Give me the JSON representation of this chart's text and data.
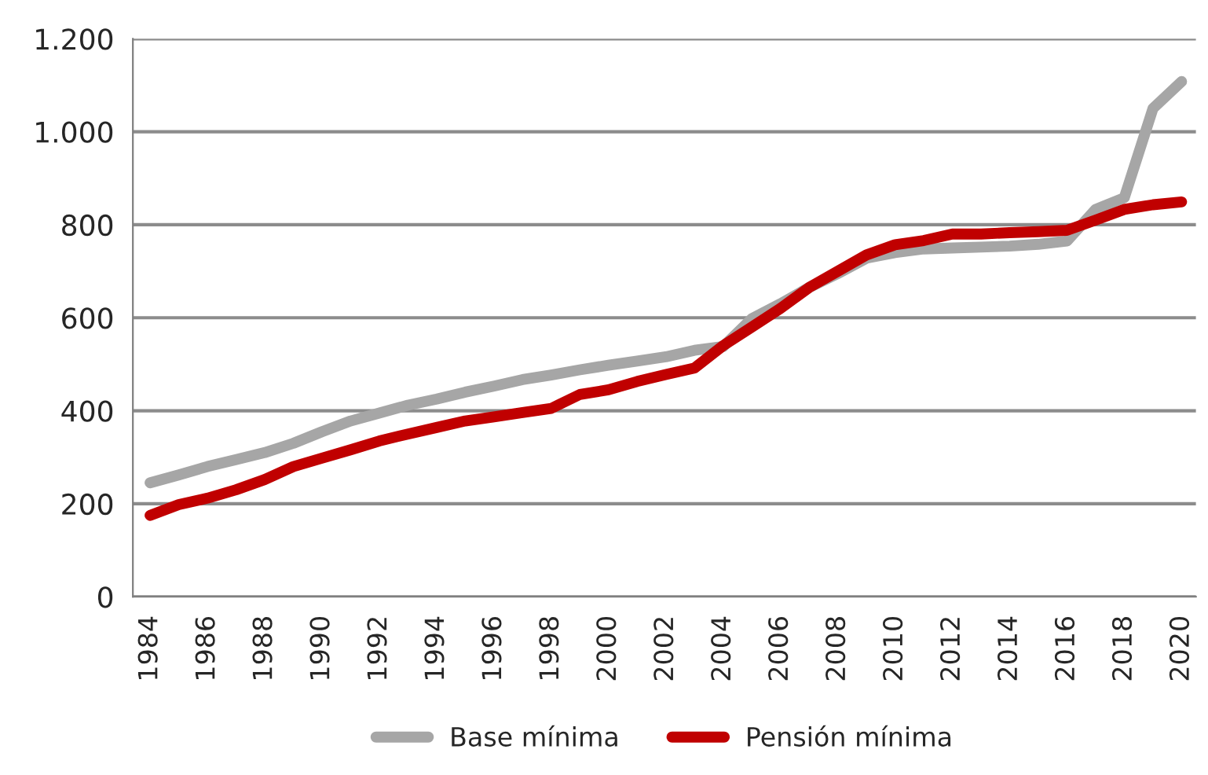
{
  "chart_data": {
    "type": "line",
    "x": [
      1984,
      1985,
      1986,
      1987,
      1988,
      1989,
      1990,
      1991,
      1992,
      1993,
      1994,
      1995,
      1996,
      1997,
      1998,
      1999,
      2000,
      2001,
      2002,
      2003,
      2004,
      2005,
      2006,
      2007,
      2008,
      2009,
      2010,
      2011,
      2012,
      2013,
      2014,
      2015,
      2016,
      2017,
      2018,
      2019,
      2020
    ],
    "series": [
      {
        "name": "Base mínima",
        "color": "#a6a6a6",
        "values": [
          245,
          262,
          280,
          295,
          310,
          330,
          355,
          378,
          395,
          412,
          425,
          440,
          453,
          467,
          477,
          488,
          498,
          507,
          516,
          530,
          538,
          598,
          630,
          665,
          695,
          728,
          740,
          748,
          750,
          752,
          754,
          758,
          765,
          833,
          858,
          1050,
          1108
        ]
      },
      {
        "name": "Pensión mínima",
        "color": "#c00000",
        "values": [
          175,
          198,
          212,
          230,
          252,
          280,
          298,
          316,
          335,
          350,
          364,
          378,
          387,
          396,
          405,
          435,
          445,
          463,
          478,
          492,
          540,
          580,
          620,
          665,
          700,
          735,
          757,
          766,
          780,
          780,
          783,
          785,
          788,
          810,
          833,
          843,
          849
        ]
      }
    ],
    "xlim": [
      1983.4,
      2020.5
    ],
    "xticks": [
      1984,
      1986,
      1988,
      1990,
      1992,
      1994,
      1996,
      1998,
      2000,
      2002,
      2004,
      2006,
      2008,
      2010,
      2012,
      2014,
      2016,
      2018,
      2020
    ],
    "ylim": [
      0,
      1200
    ],
    "yticks": [
      0,
      200,
      400,
      600,
      800,
      {
        "value": 1000,
        "label": "1.000"
      },
      {
        "value": 1200,
        "label": "1.200"
      }
    ],
    "grid": "y",
    "legend": "bottom",
    "marker": "none",
    "line_style": "solid"
  }
}
